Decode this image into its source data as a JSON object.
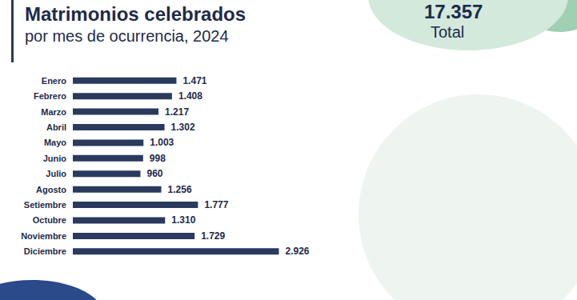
{
  "chart_data": {
    "type": "bar",
    "title": "Matrimonios celebrados",
    "subtitle": "por mes de ocurrencia, 2024",
    "annotations": [
      "17.357",
      "Total"
    ],
    "orientation": "horizontal",
    "categories": [
      "Enero",
      "Febrero",
      "Marzo",
      "Abril",
      "Mayo",
      "Junio",
      "Julio",
      "Agosto",
      "Setiembre",
      "Octubre",
      "Noviembre",
      "Diciembre"
    ],
    "values": [
      1471,
      1408,
      1217,
      1302,
      1003,
      998,
      960,
      1256,
      1777,
      1310,
      1729,
      2926
    ],
    "value_labels": [
      "1.471",
      "1.408",
      "1.217",
      "1.302",
      "1.003",
      "998",
      "960",
      "1.256",
      "1.777",
      "1.310",
      "1.729",
      "2.926"
    ],
    "color": "#2a3a5e",
    "xlim": [
      0,
      3000
    ],
    "data_labels": true,
    "tick_labels": "y",
    "grid": false
  }
}
